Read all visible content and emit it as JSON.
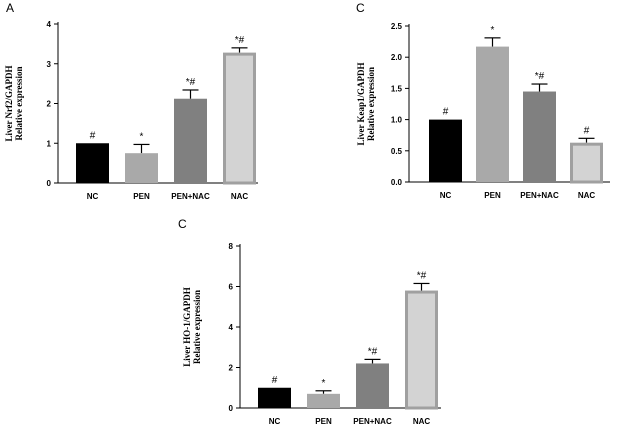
{
  "chart_data": [
    {
      "type": "bar",
      "panel_label": "A",
      "ylabel_line1": "Liver Nrf2/GAPDH",
      "ylabel_line2": "Relative expression",
      "categories": [
        "NC",
        "PEN",
        "PEN+NAC",
        "NAC"
      ],
      "values": [
        1.0,
        0.75,
        2.12,
        3.28
      ],
      "errors": [
        0.0,
        0.22,
        0.22,
        0.12
      ],
      "annotations": [
        "#",
        "*",
        "*#",
        "*#"
      ],
      "fills": [
        "#000000",
        "#a9a9a9",
        "#808080",
        "#d3d3d3"
      ],
      "outline": [
        false,
        false,
        false,
        true
      ],
      "ylim": [
        0,
        4
      ],
      "yticks": [
        "0",
        "1",
        "2",
        "3",
        "4"
      ]
    },
    {
      "type": "bar",
      "panel_label": "C",
      "ylabel_line1": "Liver Keap1/GAPDH",
      "ylabel_line2": "Relative expression",
      "categories": [
        "NC",
        "PEN",
        "PEN+NAC",
        "NAC"
      ],
      "values": [
        1.0,
        2.17,
        1.45,
        0.63
      ],
      "errors": [
        0.0,
        0.14,
        0.12,
        0.07
      ],
      "annotations": [
        "#",
        "*",
        "*#",
        "#"
      ],
      "fills": [
        "#000000",
        "#a9a9a9",
        "#808080",
        "#d3d3d3"
      ],
      "outline": [
        false,
        false,
        false,
        true
      ],
      "ylim": [
        0,
        2.5
      ],
      "yticks": [
        "0.0",
        "0.5",
        "1.0",
        "1.5",
        "2.0",
        "2.5"
      ]
    },
    {
      "type": "bar",
      "panel_label": "C",
      "ylabel_line1": "Liver HO-1/GAPDH",
      "ylabel_line2": "Relative expression",
      "categories": [
        "NC",
        "PEN",
        "PEN+NAC",
        "NAC"
      ],
      "values": [
        1.0,
        0.7,
        2.2,
        5.8
      ],
      "errors": [
        0.0,
        0.15,
        0.2,
        0.35
      ],
      "annotations": [
        "#",
        "*",
        "*#",
        "*#"
      ],
      "fills": [
        "#000000",
        "#a9a9a9",
        "#808080",
        "#d3d3d3"
      ],
      "outline": [
        false,
        false,
        false,
        true
      ],
      "ylim": [
        0,
        8
      ],
      "yticks": [
        "0",
        "2",
        "4",
        "6",
        "8"
      ]
    }
  ]
}
